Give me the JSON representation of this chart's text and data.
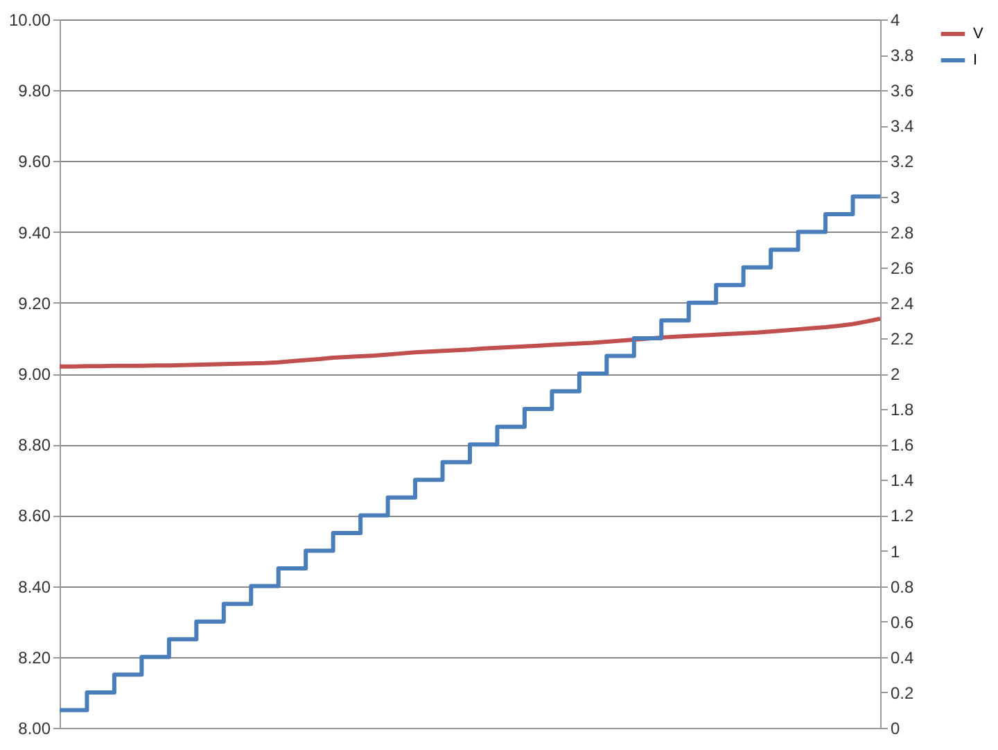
{
  "chart_data": {
    "type": "line",
    "categories": [
      null,
      null,
      null,
      null,
      null,
      null,
      null,
      null,
      null,
      null,
      null,
      null,
      null,
      null,
      null,
      null,
      null,
      null,
      null,
      null,
      null,
      null,
      null,
      null,
      null,
      null,
      null,
      null,
      null,
      null,
      null,
      null,
      null,
      null,
      null,
      null,
      null,
      null,
      null,
      null,
      null,
      null,
      null,
      null,
      null,
      null,
      null,
      null,
      null,
      null,
      null,
      null,
      null,
      null,
      null,
      null,
      null,
      null,
      null,
      null,
      null
    ],
    "series": [
      {
        "name": "V",
        "color": "#c0504d",
        "values": [
          9.02,
          9.02,
          9.021,
          9.021,
          9.022,
          9.022,
          9.022,
          9.023,
          9.023,
          9.024,
          9.025,
          9.026,
          9.027,
          9.028,
          9.029,
          9.03,
          9.032,
          9.035,
          9.038,
          9.041,
          9.045,
          9.047,
          9.049,
          9.051,
          9.054,
          9.057,
          9.06,
          9.062,
          9.064,
          9.066,
          9.068,
          9.071,
          9.073,
          9.075,
          9.077,
          9.079,
          9.081,
          9.083,
          9.085,
          9.087,
          9.09,
          9.093,
          9.096,
          9.099,
          9.102,
          9.104,
          9.106,
          9.108,
          9.11,
          9.112,
          9.114,
          9.116,
          9.119,
          9.122,
          9.125,
          9.128,
          9.131,
          9.135,
          9.14,
          9.147,
          9.155
        ]
      },
      {
        "name": "I",
        "color": "#4a7ebb",
        "type": "step",
        "axis": "y2",
        "values": [
          0.1,
          0.1,
          0.2,
          0.2,
          0.3,
          0.3,
          0.4,
          0.4,
          0.5,
          0.5,
          0.6,
          0.6,
          0.7,
          0.7,
          0.8,
          0.8,
          0.9,
          0.9,
          1.0,
          1.0,
          1.1,
          1.1,
          1.2,
          1.2,
          1.3,
          1.3,
          1.4,
          1.4,
          1.5,
          1.5,
          1.6,
          1.6,
          1.7,
          1.7,
          1.8,
          1.8,
          1.9,
          1.9,
          2.0,
          2.0,
          2.1,
          2.1,
          2.2,
          2.2,
          2.3,
          2.3,
          2.4,
          2.4,
          2.5,
          2.5,
          2.6,
          2.6,
          2.7,
          2.7,
          2.8,
          2.8,
          2.9,
          2.9,
          3.0,
          3.0,
          3.0
        ]
      }
    ],
    "ylim": [
      8,
      10
    ],
    "yticks": [
      {
        "value": 8,
        "label": "8.00"
      },
      {
        "value": 8.2,
        "label": "8.20"
      },
      {
        "value": 8.4,
        "label": "8.40"
      },
      {
        "value": 8.6,
        "label": "8.60"
      },
      {
        "value": 8.8,
        "label": "8.80"
      },
      {
        "value": 9,
        "label": "9.00"
      },
      {
        "value": 9.2,
        "label": "9.20"
      },
      {
        "value": 9.4,
        "label": "9.40"
      },
      {
        "value": 9.6,
        "label": "9.60"
      },
      {
        "value": 9.8,
        "label": "9.80"
      },
      {
        "value": 10,
        "label": "10.00"
      }
    ],
    "y2lim": [
      0,
      4
    ],
    "y2ticks": [
      0,
      0.2,
      0.4,
      0.6,
      0.8,
      1,
      1.2,
      1.4,
      1.6,
      1.8,
      2,
      2.2,
      2.4,
      2.6,
      2.8,
      3,
      3.2,
      3.4,
      3.6,
      3.8,
      4
    ],
    "grid": "y",
    "legend": "right",
    "tick_labels": "y"
  }
}
